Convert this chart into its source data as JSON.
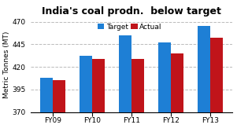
{
  "title": "India's coal prodn.  below target",
  "ylabel": "Metric Tonnes (MT)",
  "categories": [
    "FY09",
    "FY10",
    "FY11",
    "FY12",
    "FY13"
  ],
  "target": [
    408,
    432,
    455,
    447,
    465
  ],
  "actual": [
    405,
    429,
    429,
    435,
    452
  ],
  "target_color": "#1E7FD5",
  "actual_color": "#C0141A",
  "ylim": [
    370,
    475
  ],
  "yticks": [
    370,
    395,
    420,
    445,
    470
  ],
  "grid_color": "#BBBBBB",
  "bg_color": "#FFFFFF",
  "bar_width": 0.32,
  "legend_labels": [
    "Target",
    "Actual"
  ],
  "title_fontsize": 9,
  "label_fontsize": 6.5,
  "tick_fontsize": 6.5,
  "legend_fontsize": 6.5
}
